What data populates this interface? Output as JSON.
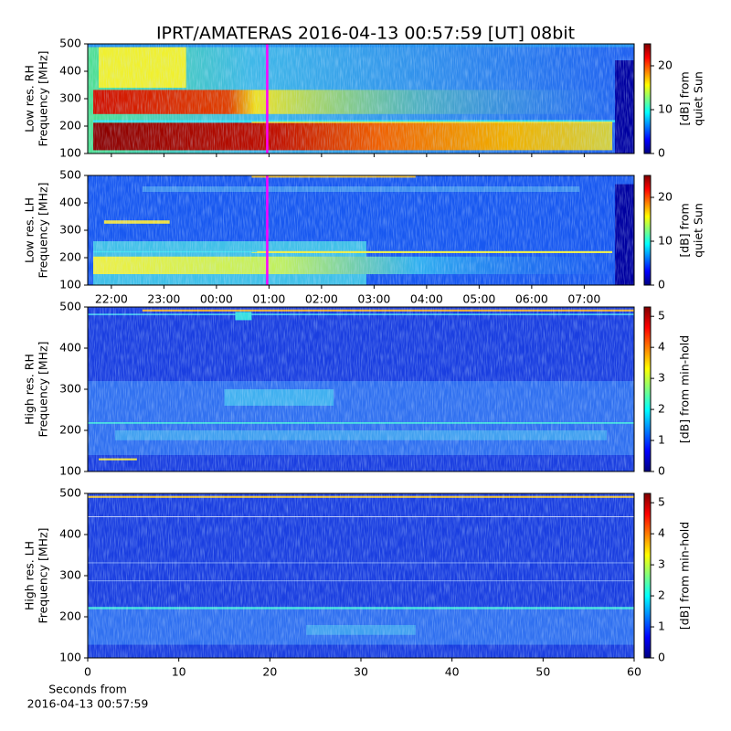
{
  "title": "IPRT/AMATERAS 2016-04-13 00:57:59 [UT]   08bit",
  "chart_data": [
    {
      "type": "spectrogram",
      "ylabel": [
        "Low res. RH",
        "Frequency [MHz]"
      ],
      "ylim": [
        100,
        500
      ],
      "yticks": [
        100,
        200,
        300,
        400,
        500
      ],
      "xlim": [
        21.55,
        31.95
      ],
      "cursor": 24.966,
      "cursor_color": "#ff00ff",
      "colorbar": {
        "label": [
          "[dB] from",
          "quiet Sun"
        ],
        "lim": [
          0,
          25
        ],
        "ticks": [
          0,
          10,
          20
        ]
      }
    },
    {
      "type": "spectrogram",
      "ylabel": [
        "Low res. LH",
        "Frequency [MHz]"
      ],
      "ylim": [
        100,
        500
      ],
      "yticks": [
        100,
        200,
        300,
        400,
        500
      ],
      "xlim": [
        21.55,
        31.95
      ],
      "cursor": 24.966,
      "cursor_color": "#ff00ff",
      "xticks": [
        {
          "value": 22,
          "label": "22:00"
        },
        {
          "value": 23,
          "label": "23:00"
        },
        {
          "value": 24,
          "label": "00:00"
        },
        {
          "value": 25,
          "label": "01:00"
        },
        {
          "value": 26,
          "label": "02:00"
        },
        {
          "value": 27,
          "label": "03:00"
        },
        {
          "value": 28,
          "label": "04:00"
        },
        {
          "value": 29,
          "label": "05:00"
        },
        {
          "value": 30,
          "label": "06:00"
        },
        {
          "value": 31,
          "label": "07:00"
        }
      ],
      "colorbar": {
        "label": [
          "[dB] from",
          "quiet Sun"
        ],
        "lim": [
          0,
          25
        ],
        "ticks": [
          0,
          10,
          20
        ]
      }
    },
    {
      "type": "spectrogram",
      "ylabel": [
        "High res. RH",
        "Frequency [MHz]"
      ],
      "ylim": [
        100,
        500
      ],
      "yticks": [
        100,
        200,
        300,
        400,
        500
      ],
      "xlim": [
        0,
        60
      ],
      "colorbar": {
        "label": [
          "[dB] from min-hold"
        ],
        "lim": [
          0,
          5.3
        ],
        "ticks": [
          0,
          1,
          2,
          3,
          4,
          5
        ]
      }
    },
    {
      "type": "spectrogram",
      "ylabel": [
        "High res. LH",
        "Frequency [MHz]"
      ],
      "ylim": [
        100,
        500
      ],
      "yticks": [
        100,
        200,
        300,
        400,
        500
      ],
      "xlim": [
        0,
        60
      ],
      "xticks": [
        0,
        10,
        20,
        30,
        40,
        50,
        60
      ],
      "xlabel": [
        "Seconds from",
        "2016-04-13 00:57:59"
      ],
      "colorbar": {
        "label": [
          "[dB] from min-hold"
        ],
        "lim": [
          0,
          5.3
        ],
        "ticks": [
          0,
          1,
          2,
          3,
          4,
          5
        ]
      }
    }
  ]
}
